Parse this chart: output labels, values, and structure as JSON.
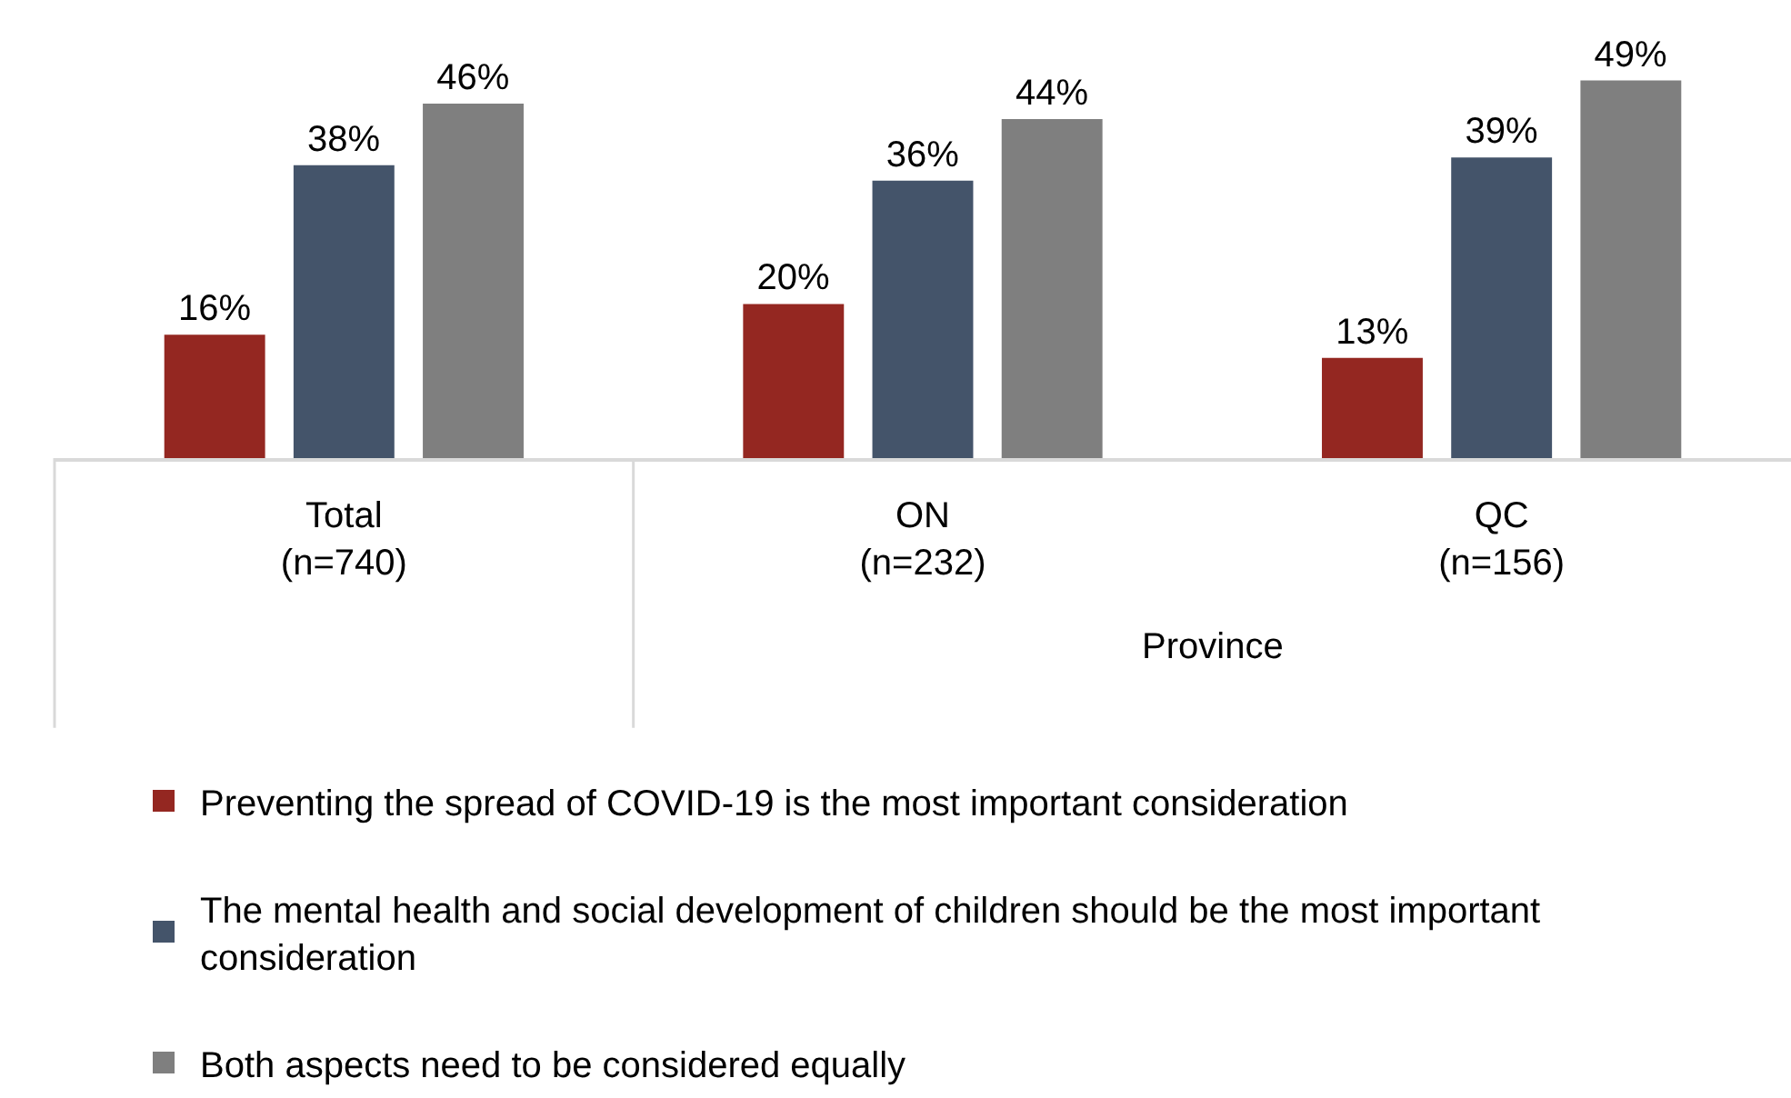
{
  "chart_data": {
    "type": "bar",
    "categories": [
      "Total\n(n=740)",
      "ON\n(n=232)",
      "QC\n(n=156)"
    ],
    "series": [
      {
        "name": "Preventing the spread of COVID-19 is the most important consideration",
        "color": "#942721",
        "values": [
          16,
          20,
          13
        ],
        "value_labels": [
          "16%",
          "20%",
          "13%"
        ]
      },
      {
        "name": "The mental health and social development of children should be the most important consideration",
        "color": "#44546a",
        "values": [
          38,
          36,
          39
        ],
        "value_labels": [
          "38%",
          "36%",
          "39%"
        ]
      },
      {
        "name": "Both aspects need to be considered equally",
        "color": "#7f7f7f",
        "values": [
          46,
          44,
          49
        ],
        "value_labels": [
          "46%",
          "44%",
          "49%"
        ]
      }
    ],
    "annotations": [
      "Province"
    ],
    "legend": "bottom"
  }
}
